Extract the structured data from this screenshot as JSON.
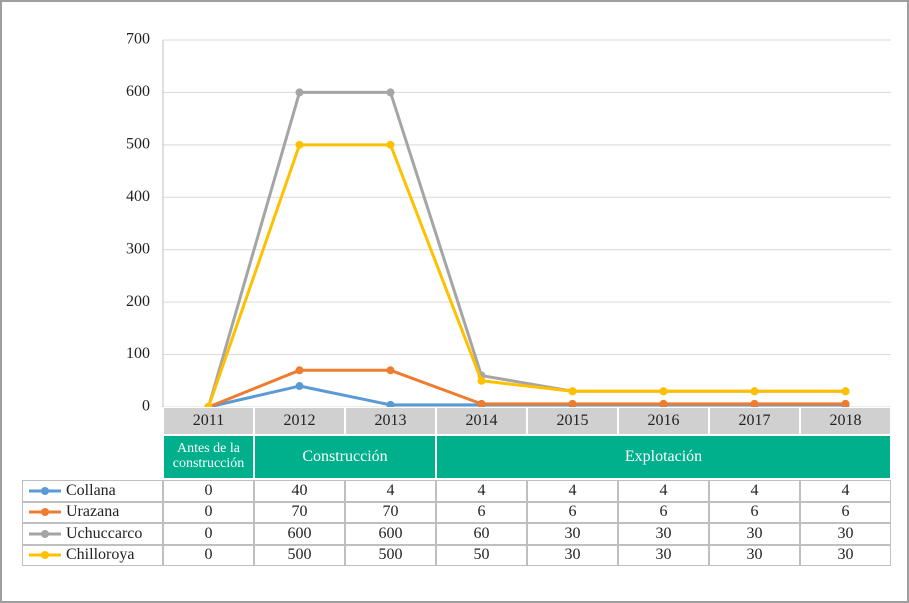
{
  "chart_data": {
    "type": "line",
    "categories": [
      "2011",
      "2012",
      "2013",
      "2014",
      "2015",
      "2016",
      "2017",
      "2018"
    ],
    "phases": [
      "Antes de la construcción",
      "Construcción",
      "Explotación"
    ],
    "series": [
      {
        "name": "Collana",
        "color": "#5b9bd5",
        "values": [
          0,
          40,
          4,
          4,
          4,
          4,
          4,
          4
        ]
      },
      {
        "name": "Urazana",
        "color": "#ed7d31",
        "values": [
          0,
          70,
          70,
          6,
          6,
          6,
          6,
          6
        ]
      },
      {
        "name": "Uchuccarco",
        "color": "#a5a5a5",
        "values": [
          0,
          600,
          600,
          60,
          30,
          30,
          30,
          30
        ]
      },
      {
        "name": "Chilloroya",
        "color": "#ffc000",
        "values": [
          0,
          500,
          500,
          50,
          30,
          30,
          30,
          30
        ]
      }
    ],
    "ylim": [
      0,
      700
    ],
    "yticks": [
      0,
      100,
      200,
      300,
      400,
      500,
      600,
      700
    ],
    "grid": true
  }
}
